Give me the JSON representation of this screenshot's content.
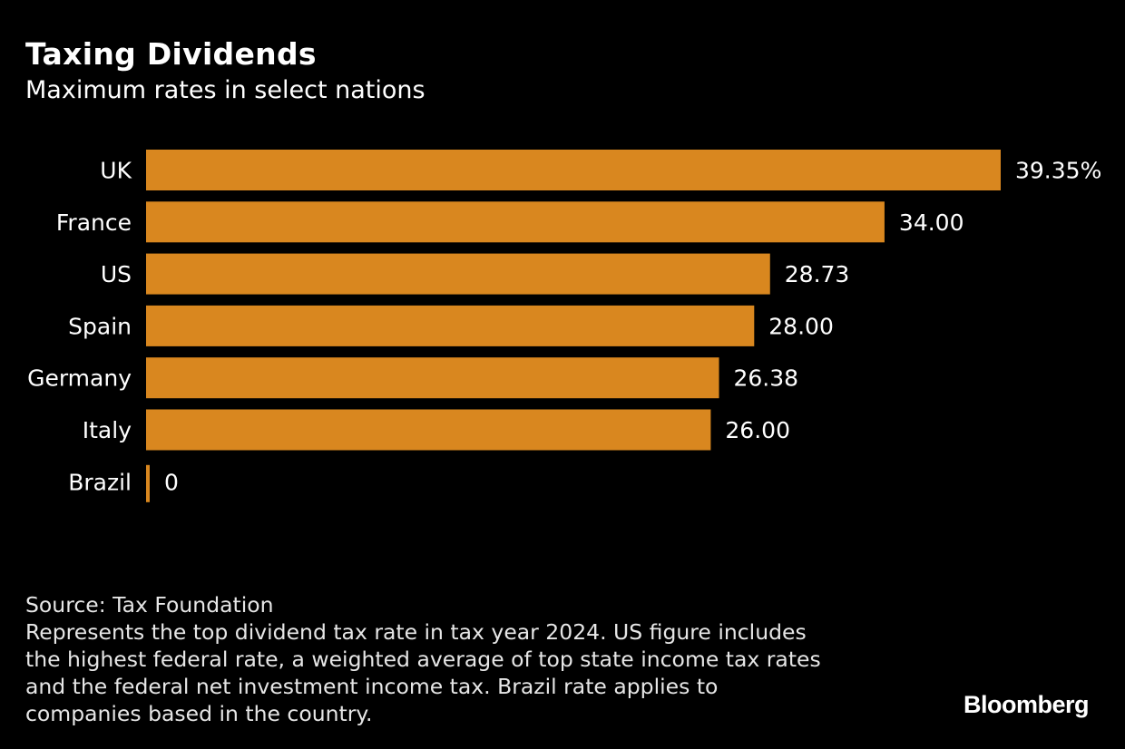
{
  "header": {
    "title": "Taxing Dividends",
    "subtitle": "Maximum rates in select nations"
  },
  "chart_data": {
    "type": "bar",
    "orientation": "horizontal",
    "categories": [
      "UK",
      "France",
      "US",
      "Spain",
      "Germany",
      "Italy",
      "Brazil"
    ],
    "values": [
      39.35,
      34.0,
      28.73,
      28.0,
      26.38,
      26.0,
      0
    ],
    "data_labels": [
      "39.35%",
      "34.00",
      "28.73",
      "28.00",
      "26.38",
      "26.00",
      "0"
    ],
    "xlim": [
      0,
      39.35
    ],
    "grid": false,
    "legend": "none",
    "bar_color": "#d9871f"
  },
  "footer": {
    "source": "Source: Tax Foundation",
    "note_lines": [
      "Represents the top dividend tax rate in tax year 2024. US figure includes",
      "the highest federal rate, a weighted average of top state income tax rates",
      "and the federal net investment income tax. Brazil rate applies to",
      "companies based in the country."
    ],
    "brand": "Bloomberg"
  },
  "colors": {
    "background": "#000000",
    "text": "#ffffff",
    "bar": "#d9871f"
  }
}
